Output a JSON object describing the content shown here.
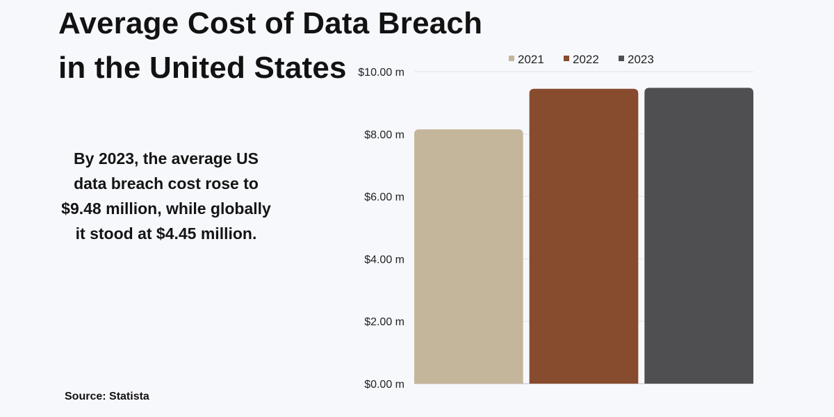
{
  "title": {
    "line1": "Average Cost of Data Breach",
    "line2": "in the United States"
  },
  "description": "By 2023, the average US data breach cost rose to $9.48 million, while globally it stood at $4.45 million.",
  "source": "Source: Statista",
  "chart_data": {
    "type": "bar",
    "categories": [
      "2021",
      "2022",
      "2023"
    ],
    "values": [
      8.15,
      9.45,
      9.48
    ],
    "colors": [
      "#c4b69b",
      "#874b2e",
      "#4f4f51"
    ],
    "yticks": [
      "$0.00 m",
      "$2.00 m",
      "$4.00 m",
      "$6.00 m",
      "$8.00 m",
      "$10.00 m"
    ],
    "ylim": [
      0,
      10
    ],
    "ylabel": "",
    "xlabel": "",
    "legend": {
      "position": "top",
      "entries": [
        "2021",
        "2022",
        "2023"
      ]
    },
    "grid": true
  }
}
